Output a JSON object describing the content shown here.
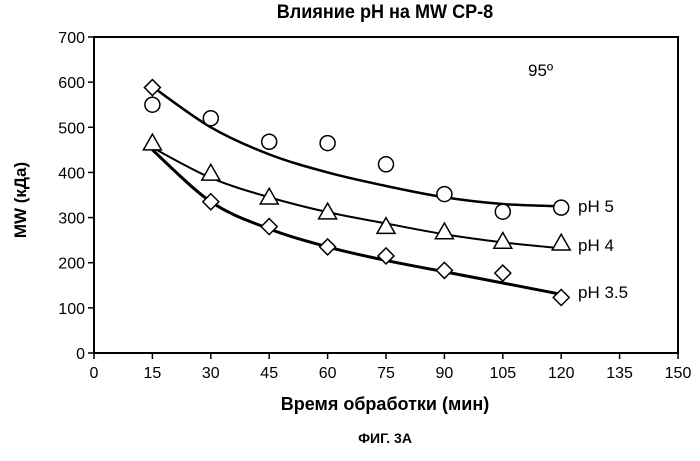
{
  "chart_data": {
    "type": "scatter",
    "title": "Влияние pH на MW CP-8",
    "xlabel": "Время обработки (мин)",
    "ylabel": "MW (кДа)",
    "xlim": [
      0,
      150
    ],
    "ylim": [
      0,
      700
    ],
    "xticks": [
      0,
      15,
      30,
      45,
      60,
      75,
      90,
      105,
      120,
      135,
      150
    ],
    "yticks": [
      0,
      100,
      200,
      300,
      400,
      500,
      600,
      700
    ],
    "annotation": "95º",
    "caption": "ФИГ. 3А",
    "grid": false,
    "legend": "inline labels at right end of curves",
    "series": [
      {
        "name": "pH 5",
        "marker": "circle",
        "x": [
          15,
          30,
          45,
          60,
          75,
          90,
          105,
          120
        ],
        "y": [
          550,
          520,
          468,
          465,
          418,
          352,
          313,
          322
        ],
        "fit": [
          590,
          500,
          440,
          400,
          370,
          345,
          330,
          325
        ]
      },
      {
        "name": "pH 4",
        "marker": "triangle",
        "x": [
          15,
          30,
          45,
          60,
          75,
          90,
          105,
          120
        ],
        "y": [
          465,
          398,
          345,
          312,
          280,
          268,
          247,
          243
        ],
        "fit": [
          455,
          388,
          345,
          312,
          287,
          263,
          245,
          232
        ]
      },
      {
        "name": "pH 3.5",
        "marker": "diamond",
        "x": [
          15,
          30,
          45,
          60,
          75,
          90,
          105,
          120
        ],
        "y": [
          588,
          335,
          280,
          235,
          215,
          183,
          177,
          123
        ],
        "fit": [
          450,
          335,
          275,
          235,
          205,
          180,
          155,
          130
        ]
      }
    ]
  }
}
